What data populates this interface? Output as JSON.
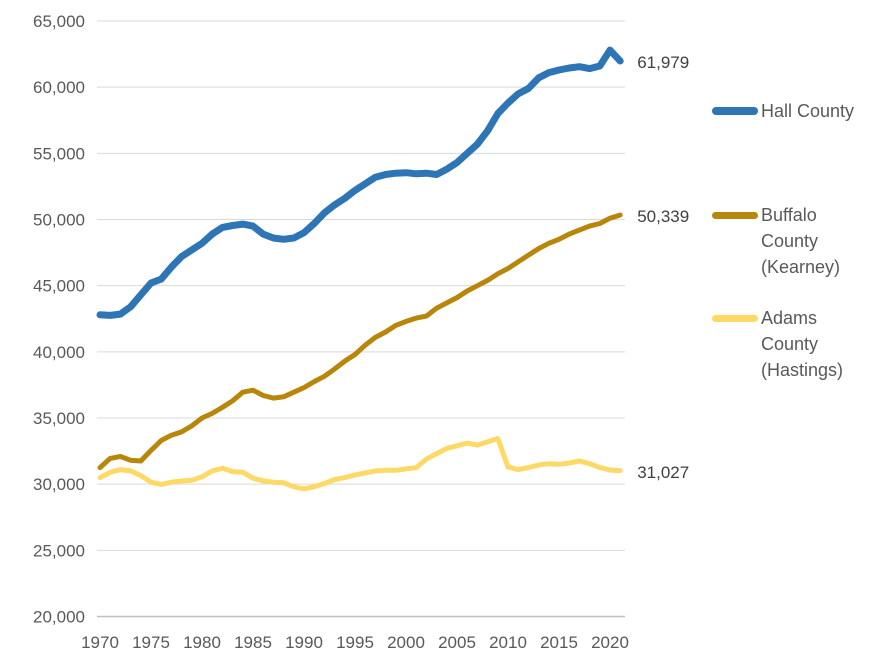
{
  "colors": {
    "hall_blue": "#2E75B6",
    "buffalo_gold": "#B8860B",
    "adams_yellow": "#FFD966",
    "gridline": "#D9D9D9",
    "axis_line": "#BFBFBF",
    "tick_text": "#595959",
    "data_label_text": "#404040"
  },
  "legend": {
    "items": [
      {
        "label": "Hall County"
      },
      {
        "label": "Buffalo\nCounty\n(Kearney)"
      },
      {
        "label": "Adams\nCounty\n(Hastings)"
      }
    ]
  },
  "chart_data": {
    "type": "line",
    "title": "",
    "xlabel": "",
    "ylabel": "",
    "grid": true,
    "legend_position": "right",
    "ylim": [
      20000,
      65000
    ],
    "y_tick_values": [
      20000,
      25000,
      30000,
      35000,
      40000,
      45000,
      50000,
      55000,
      60000,
      65000
    ],
    "y_tick_labels": [
      "20,000",
      "25,000",
      "30,000",
      "35,000",
      "40,000",
      "45,000",
      "50,000",
      "55,000",
      "60,000",
      "65,000"
    ],
    "x_tick_values": [
      1970,
      1975,
      1980,
      1985,
      1990,
      1995,
      2000,
      2005,
      2010,
      2015,
      2020
    ],
    "x_tick_labels": [
      "1970",
      "1975",
      "1980",
      "1985",
      "1990",
      "1995",
      "2000",
      "2005",
      "2010",
      "2015",
      "2020"
    ],
    "x": [
      1970,
      1971,
      1972,
      1973,
      1974,
      1975,
      1976,
      1977,
      1978,
      1979,
      1980,
      1981,
      1982,
      1983,
      1984,
      1985,
      1986,
      1987,
      1988,
      1989,
      1990,
      1991,
      1992,
      1993,
      1994,
      1995,
      1996,
      1997,
      1998,
      1999,
      2000,
      2001,
      2002,
      2003,
      2004,
      2005,
      2006,
      2007,
      2008,
      2009,
      2010,
      2011,
      2012,
      2013,
      2014,
      2015,
      2016,
      2017,
      2018,
      2019,
      2020,
      2021
    ],
    "series": [
      {
        "name": "Hall County",
        "color": "#2E75B6",
        "end_label": "61,979",
        "values": [
          42800,
          42750,
          42850,
          43400,
          44300,
          45200,
          45500,
          46400,
          47200,
          47700,
          48200,
          48900,
          49400,
          49550,
          49650,
          49500,
          48900,
          48600,
          48500,
          48600,
          49000,
          49700,
          50500,
          51100,
          51600,
          52200,
          52700,
          53200,
          53400,
          53500,
          53534,
          53450,
          53500,
          53400,
          53800,
          54300,
          55000,
          55700,
          56700,
          58000,
          58800,
          59500,
          59900,
          60700,
          61100,
          61300,
          61450,
          61550,
          61400,
          61600,
          62800,
          61979
        ]
      },
      {
        "name": "Buffalo County (Kearney)",
        "color": "#B8860B",
        "end_label": "50,339",
        "values": [
          31250,
          31950,
          32100,
          31800,
          31750,
          32550,
          33300,
          33700,
          33950,
          34400,
          35000,
          35350,
          35800,
          36300,
          36950,
          37100,
          36700,
          36500,
          36600,
          36950,
          37300,
          37750,
          38150,
          38700,
          39300,
          39800,
          40500,
          41100,
          41500,
          42000,
          42300,
          42550,
          42700,
          43300,
          43700,
          44100,
          44600,
          45000,
          45400,
          45900,
          46300,
          46800,
          47300,
          47800,
          48200,
          48500,
          48900,
          49200,
          49500,
          49700,
          50100,
          50339
        ]
      },
      {
        "name": "Adams County (Hastings)",
        "color": "#FFD966",
        "end_label": "31,027",
        "values": [
          30500,
          30900,
          31100,
          31000,
          30650,
          30150,
          29980,
          30150,
          30250,
          30300,
          30550,
          31000,
          31200,
          30950,
          30900,
          30450,
          30250,
          30150,
          30100,
          29800,
          29650,
          29800,
          30050,
          30350,
          30500,
          30700,
          30850,
          31000,
          31050,
          31050,
          31150,
          31250,
          31900,
          32300,
          32700,
          32900,
          33100,
          32950,
          33200,
          33450,
          31300,
          31100,
          31250,
          31450,
          31550,
          31500,
          31600,
          31750,
          31550,
          31260,
          31060,
          31027
        ]
      }
    ]
  }
}
